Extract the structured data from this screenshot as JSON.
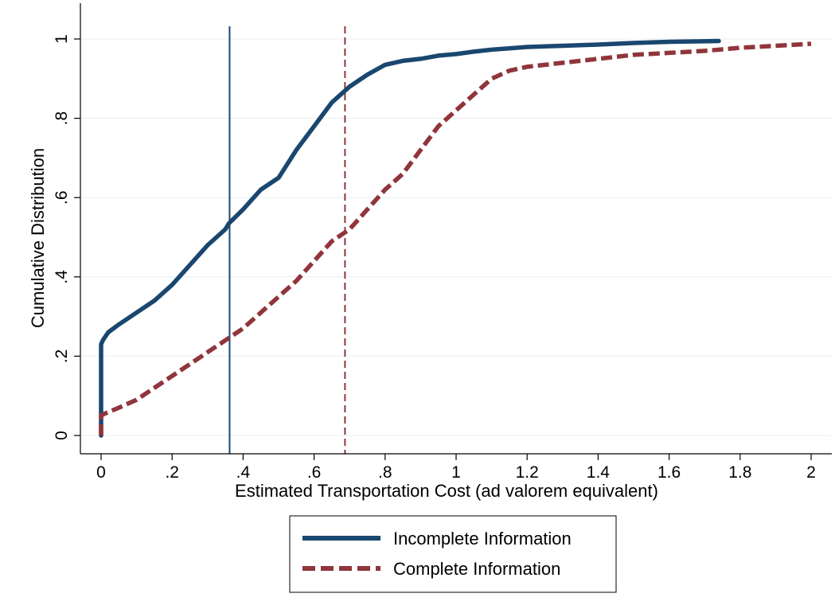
{
  "chart_data": {
    "type": "line",
    "title": "",
    "xlabel": "Estimated Transportation Cost (ad valorem equivalent)",
    "ylabel": "Cumulative Distribution",
    "xlim": [
      0,
      2
    ],
    "ylim": [
      0,
      1
    ],
    "xticks": [
      0,
      0.2,
      0.4,
      0.6,
      0.8,
      1,
      1.2,
      1.4,
      1.6,
      1.8,
      2
    ],
    "xtick_labels": [
      "0",
      ".2",
      ".4",
      ".6",
      ".8",
      "1",
      "1.2",
      "1.4",
      "1.6",
      "1.8",
      "2"
    ],
    "yticks": [
      0,
      0.2,
      0.4,
      0.6,
      0.8,
      1
    ],
    "ytick_labels": [
      "0",
      ".2",
      ".4",
      ".6",
      ".8",
      "1"
    ],
    "grid": true,
    "legend_position": "bottom",
    "series": [
      {
        "name": "Incomplete Information",
        "color": "#1a476f",
        "style": "solid",
        "x": [
          0,
          0,
          0.005,
          0.02,
          0.05,
          0.1,
          0.15,
          0.2,
          0.25,
          0.3,
          0.35,
          0.36,
          0.4,
          0.45,
          0.5,
          0.55,
          0.6,
          0.65,
          0.7,
          0.75,
          0.8,
          0.85,
          0.9,
          0.95,
          1.0,
          1.05,
          1.1,
          1.2,
          1.3,
          1.4,
          1.5,
          1.6,
          1.74
        ],
        "y": [
          0,
          0.23,
          0.24,
          0.26,
          0.28,
          0.31,
          0.34,
          0.38,
          0.43,
          0.48,
          0.52,
          0.535,
          0.57,
          0.62,
          0.65,
          0.72,
          0.78,
          0.84,
          0.88,
          0.91,
          0.935,
          0.945,
          0.95,
          0.958,
          0.962,
          0.968,
          0.973,
          0.98,
          0.983,
          0.986,
          0.99,
          0.993,
          0.995
        ]
      },
      {
        "name": "Complete Information",
        "color": "#90353b",
        "style": "dashed",
        "x": [
          0,
          0,
          0.01,
          0.05,
          0.1,
          0.15,
          0.2,
          0.25,
          0.3,
          0.35,
          0.4,
          0.45,
          0.5,
          0.55,
          0.6,
          0.65,
          0.7,
          0.75,
          0.8,
          0.85,
          0.9,
          0.95,
          1.0,
          1.05,
          1.1,
          1.15,
          1.2,
          1.3,
          1.4,
          1.5,
          1.6,
          1.7,
          1.8,
          1.9,
          2.0
        ],
        "y": [
          0,
          0.05,
          0.055,
          0.07,
          0.09,
          0.12,
          0.15,
          0.18,
          0.21,
          0.24,
          0.27,
          0.31,
          0.35,
          0.39,
          0.44,
          0.49,
          0.52,
          0.57,
          0.62,
          0.66,
          0.72,
          0.78,
          0.82,
          0.86,
          0.9,
          0.92,
          0.93,
          0.94,
          0.95,
          0.96,
          0.965,
          0.97,
          0.978,
          0.983,
          0.988
        ]
      }
    ],
    "reference_lines": [
      {
        "axis": "x",
        "value": 0.362,
        "color": "#1a476f",
        "style": "solid"
      },
      {
        "axis": "x",
        "value": 0.687,
        "color": "#90353b",
        "style": "dashed"
      }
    ]
  }
}
